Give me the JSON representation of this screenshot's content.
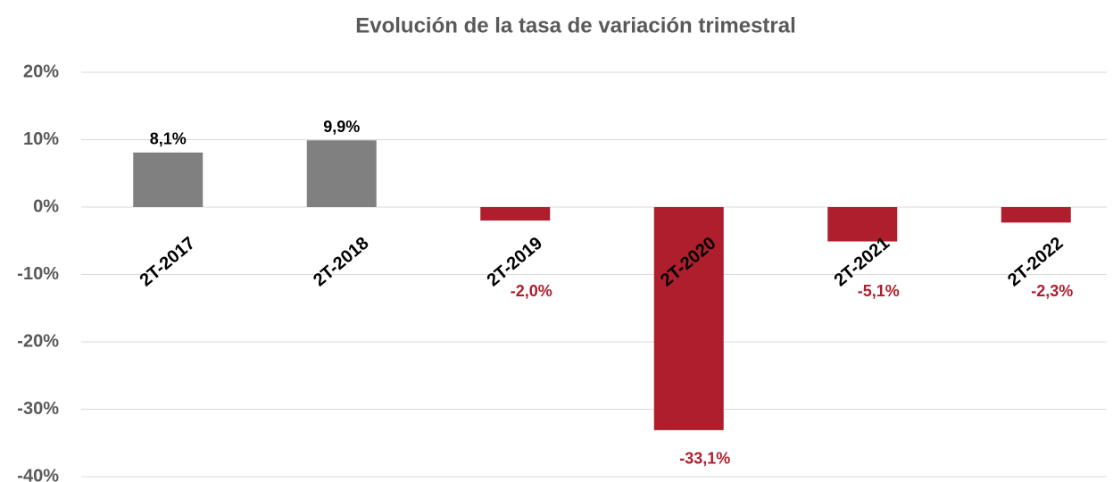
{
  "chart_data": {
    "type": "bar",
    "title": "Evolución de la tasa de variación trimestral",
    "categories": [
      "2T-2017",
      "2T-2018",
      "2T-2019",
      "2T-2020",
      "2T-2021",
      "2T-2022"
    ],
    "values": [
      8.1,
      9.9,
      -2.0,
      -33.1,
      -5.1,
      -2.3
    ],
    "value_labels": [
      "8,1%",
      "9,9%",
      "-2,0%",
      "-33,1%",
      "-5,1%",
      "-2,3%"
    ],
    "colors": [
      "#808080",
      "#808080",
      "#ae1e2d",
      "#ae1e2d",
      "#ae1e2d",
      "#ae1e2d"
    ],
    "label_colors": [
      "#000000",
      "#000000",
      "#ae1e2d",
      "#ae1e2d",
      "#ae1e2d",
      "#ae1e2d"
    ],
    "ylim": [
      -40,
      20
    ],
    "yticks": [
      {
        "value": -40,
        "label": "-40%"
      },
      {
        "value": -30,
        "label": "-30%"
      },
      {
        "value": -20,
        "label": "-20%"
      },
      {
        "value": -10,
        "label": "-10%"
      },
      {
        "value": 0,
        "label": "0%"
      },
      {
        "value": 10,
        "label": "10%"
      },
      {
        "value": 20,
        "label": "20%"
      }
    ],
    "grid": true
  }
}
